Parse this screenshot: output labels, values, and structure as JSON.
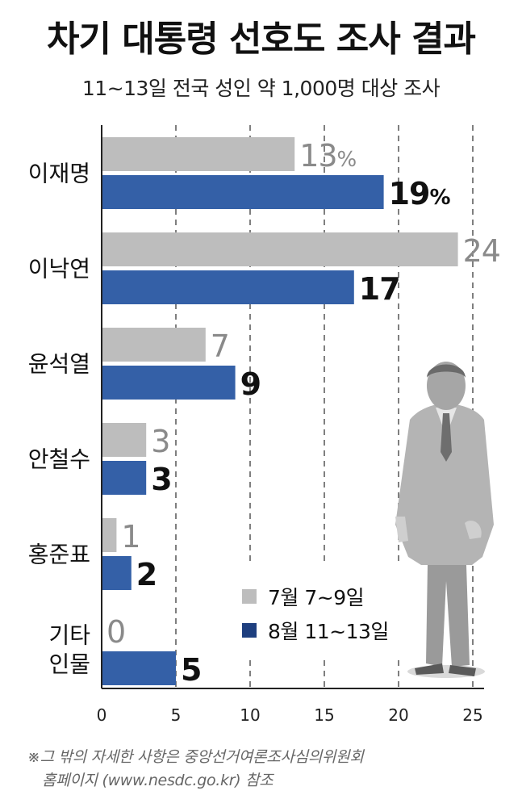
{
  "title": "차기 대통령 선호도 조사 결과",
  "subtitle": "11~13일 전국 성인 약 1,000명 대상 조사",
  "footnote": {
    "line1": "※그 밖의 자세한 사항은 중앙선거여론조사심의위원회",
    "line2": "홈페이지 (www.nesdc.go.kr) 참조"
  },
  "colors": {
    "series1": "#bdbdbd",
    "series2": "#3460a7",
    "label1": "#8a8a8a",
    "label2": "#111111",
    "axis": "#222222",
    "grid": "#555555"
  },
  "icons": {
    "illustration": "businessman-silhouette"
  },
  "chart_data": {
    "type": "bar",
    "orientation": "horizontal",
    "categories": [
      "이재명",
      "이낙연",
      "윤석열",
      "안철수",
      "홍준표",
      "기타\n인물"
    ],
    "series": [
      {
        "name": "7월 7~9일",
        "values": [
          13,
          24,
          7,
          3,
          1,
          0
        ],
        "labels": [
          "13%",
          "24",
          "7",
          "3",
          "1",
          "0"
        ]
      },
      {
        "name": "8월 11~13일",
        "values": [
          19,
          17,
          9,
          3,
          2,
          5
        ],
        "labels": [
          "19%",
          "17",
          "9",
          "3",
          "2",
          "5"
        ]
      }
    ],
    "xlim": [
      0,
      27
    ],
    "xticks": [
      0,
      5,
      10,
      15,
      20,
      25
    ],
    "grid": "vertical dashed",
    "legend_position": "bottom-right"
  }
}
